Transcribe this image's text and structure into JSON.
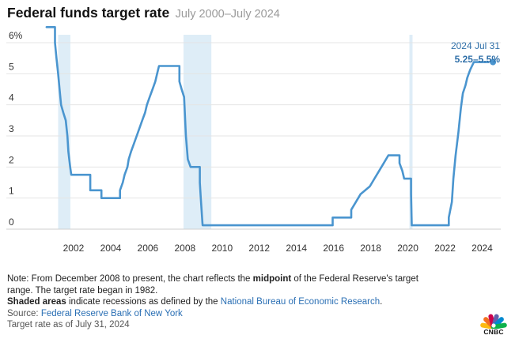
{
  "header": {
    "title": "Federal funds target rate",
    "subtitle": "July 2000–July 2024"
  },
  "chart_data": {
    "type": "line",
    "title": "Federal funds target rate",
    "subtitle": "July 2000–July 2024",
    "xlabel": "",
    "ylabel": "",
    "xlim": [
      2000.0,
      2025.0
    ],
    "ylim": [
      0,
      6.5
    ],
    "x_ticks": [
      "2002",
      "2004",
      "2006",
      "2008",
      "2010",
      "2012",
      "2014",
      "2016",
      "2018",
      "2020",
      "2022",
      "2024"
    ],
    "y_ticks": [
      "0",
      "1",
      "2",
      "3",
      "4",
      "5",
      "6%"
    ],
    "grid": true,
    "line_color": "#4a95cf",
    "shade_color": "#deedf7",
    "recessions": [
      {
        "start": 2001.17,
        "end": 2001.83
      },
      {
        "start": 2007.92,
        "end": 2009.42
      },
      {
        "start": 2020.08,
        "end": 2020.25
      }
    ],
    "series": [
      {
        "values": [
          [
            2000.55,
            6.5
          ],
          [
            2001.0,
            6.5
          ],
          [
            2001.0,
            6.0
          ],
          [
            2001.08,
            5.5
          ],
          [
            2001.17,
            5.0
          ],
          [
            2001.25,
            4.5
          ],
          [
            2001.33,
            4.0
          ],
          [
            2001.45,
            3.75
          ],
          [
            2001.58,
            3.5
          ],
          [
            2001.67,
            3.0
          ],
          [
            2001.72,
            2.5
          ],
          [
            2001.82,
            2.0
          ],
          [
            2001.88,
            1.75
          ],
          [
            2002.9,
            1.75
          ],
          [
            2002.9,
            1.25
          ],
          [
            2003.5,
            1.25
          ],
          [
            2003.5,
            1.0
          ],
          [
            2004.5,
            1.0
          ],
          [
            2004.5,
            1.25
          ],
          [
            2004.65,
            1.5
          ],
          [
            2004.75,
            1.75
          ],
          [
            2004.9,
            2.0
          ],
          [
            2004.97,
            2.25
          ],
          [
            2005.1,
            2.5
          ],
          [
            2005.25,
            2.75
          ],
          [
            2005.4,
            3.0
          ],
          [
            2005.55,
            3.25
          ],
          [
            2005.7,
            3.5
          ],
          [
            2005.85,
            3.75
          ],
          [
            2005.95,
            4.0
          ],
          [
            2006.1,
            4.25
          ],
          [
            2006.25,
            4.5
          ],
          [
            2006.4,
            4.75
          ],
          [
            2006.5,
            5.0
          ],
          [
            2006.6,
            5.25
          ],
          [
            2007.7,
            5.25
          ],
          [
            2007.7,
            4.75
          ],
          [
            2007.82,
            4.5
          ],
          [
            2007.95,
            4.25
          ],
          [
            2008.05,
            3.0
          ],
          [
            2008.15,
            2.25
          ],
          [
            2008.3,
            2.0
          ],
          [
            2008.8,
            2.0
          ],
          [
            2008.8,
            1.5
          ],
          [
            2008.85,
            1.0
          ],
          [
            2008.95,
            0.125
          ],
          [
            2015.95,
            0.125
          ],
          [
            2015.95,
            0.375
          ],
          [
            2016.95,
            0.375
          ],
          [
            2016.95,
            0.625
          ],
          [
            2017.2,
            0.875
          ],
          [
            2017.45,
            1.125
          ],
          [
            2017.95,
            1.375
          ],
          [
            2018.2,
            1.625
          ],
          [
            2018.45,
            1.875
          ],
          [
            2018.7,
            2.125
          ],
          [
            2018.95,
            2.375
          ],
          [
            2019.55,
            2.375
          ],
          [
            2019.55,
            2.125
          ],
          [
            2019.7,
            1.875
          ],
          [
            2019.8,
            1.625
          ],
          [
            2020.17,
            1.625
          ],
          [
            2020.17,
            1.125
          ],
          [
            2020.21,
            0.125
          ],
          [
            2022.2,
            0.125
          ],
          [
            2022.2,
            0.375
          ],
          [
            2022.37,
            0.875
          ],
          [
            2022.45,
            1.625
          ],
          [
            2022.57,
            2.375
          ],
          [
            2022.72,
            3.125
          ],
          [
            2022.85,
            3.875
          ],
          [
            2022.96,
            4.375
          ],
          [
            2023.1,
            4.625
          ],
          [
            2023.2,
            4.875
          ],
          [
            2023.35,
            5.125
          ],
          [
            2023.55,
            5.375
          ],
          [
            2024.58,
            5.375
          ]
        ]
      }
    ],
    "annotation": {
      "date": "2024 Jul 31",
      "value": "5.25–5.5%",
      "x": 2024.58,
      "y": 5.375
    }
  },
  "notes": {
    "line1_pre": "Note: From December 2008 to present, the chart reflects the ",
    "line1_bold": "midpoint",
    "line1_post": " of the Federal Reserve's target",
    "line2": "range. The target rate began in 1982.",
    "line3_bold": "Shaded areas",
    "line3_mid": " indicate recessions as defined by the ",
    "line3_link": "National Bureau of Economic Research",
    "line3_end": ".",
    "source_label": "Source: ",
    "source_link": "Federal Reserve Bank of New York",
    "asof": "Target rate as of July 31, 2024"
  },
  "logo": {
    "text": "CNBC",
    "colors": [
      "#fcba12",
      "#f37021",
      "#cc004c",
      "#6460aa",
      "#0089d0",
      "#0db14b"
    ]
  }
}
